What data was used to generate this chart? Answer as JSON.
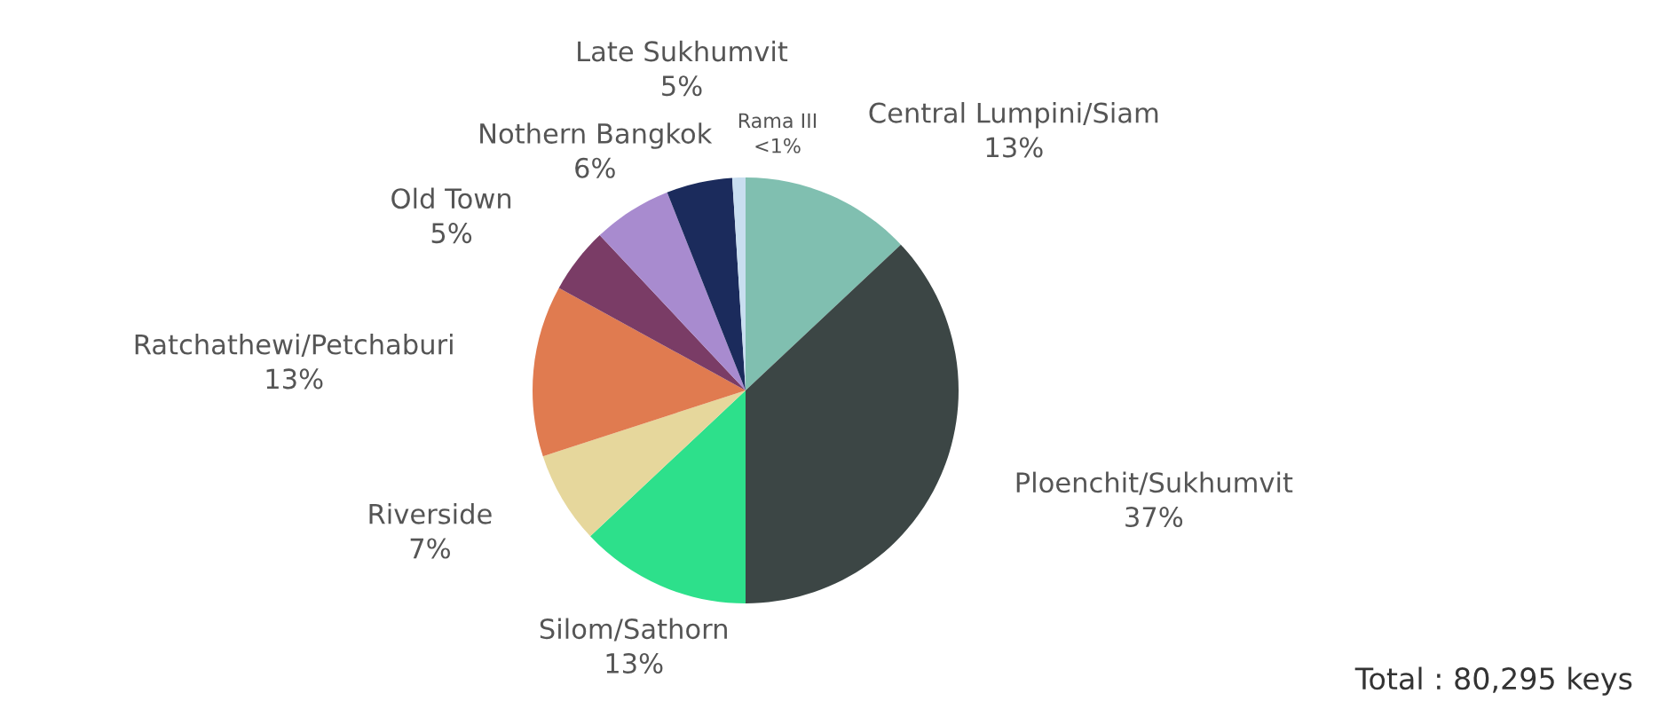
{
  "chart_data": {
    "type": "pie",
    "categories": [
      "Central Lumpini/Siam",
      "Ploenchit/Sukhumvit",
      "Silom/Sathorn",
      "Riverside",
      "Ratchathewi/Petchaburi",
      "Old Town",
      "Nothern Bangkok",
      "Late Sukhumvit",
      "Rama III"
    ],
    "values": [
      13,
      37,
      13,
      7,
      13,
      5,
      6,
      5,
      1
    ],
    "value_labels": [
      "13%",
      "37%",
      "13%",
      "7%",
      "13%",
      "5%",
      "6%",
      "5%",
      "<1%"
    ],
    "colors": [
      "#80bfb0",
      "#3c4645",
      "#2de08b",
      "#e6d79c",
      "#e07b50",
      "#7a3c66",
      "#a88bcf",
      "#1b2b5c",
      "#c8def0"
    ],
    "annotations": [
      "Total : 80,295 keys"
    ]
  }
}
